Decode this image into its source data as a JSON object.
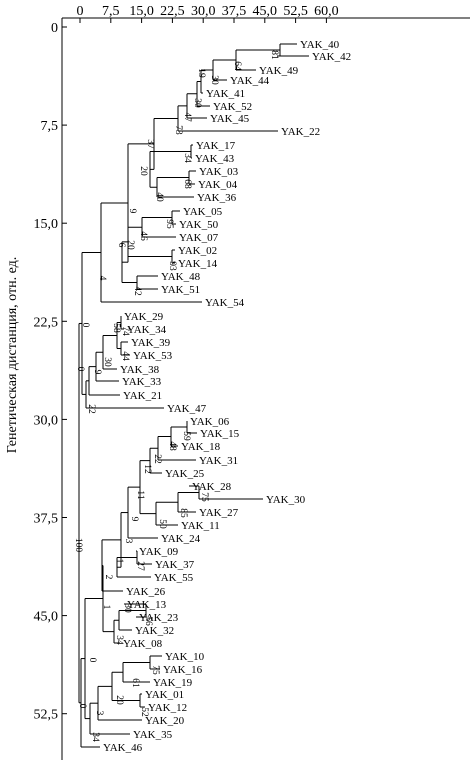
{
  "axis": {
    "title": "Генетическая дистанция, отн. ед.",
    "x_ticks": [
      "0",
      "7,5",
      "15,0",
      "22,5",
      "30,0",
      "37,5",
      "45,0",
      "52,5",
      "60,0"
    ],
    "y_ticks": [
      "0",
      "7,5",
      "15,0",
      "22,5",
      "30,0",
      "37,5",
      "45,0",
      "52,5"
    ]
  },
  "leaves": [
    "YAK_40",
    "YAK_42",
    "YAK_49",
    "YAK_44",
    "YAK_41",
    "YAK_52",
    "YAK_45",
    "YAK_22",
    "YAK_17",
    "YAK_43",
    "YAK_03",
    "YAK_04",
    "YAK_36",
    "YAK_05",
    "YAK_50",
    "YAK_07",
    "YAK_02",
    "YAK_14",
    "YAK_48",
    "YAK_51",
    "YAK_54",
    "YAK_29",
    "YAK_34",
    "YAK_39",
    "YAK_53",
    "YAK_38",
    "YAK_33",
    "YAK_21",
    "YAK_47",
    "YAK_06",
    "YAK_15",
    "YAK_18",
    "YAK_31",
    "YAK_25",
    "YAK_28",
    "YAK_30",
    "YAK_27",
    "YAK_11",
    "YAK_24",
    "YAK_09",
    "YAK_37",
    "YAK_55",
    "YAK_26",
    "YAK_13",
    "YAK_23",
    "YAK_32",
    "YAK_08",
    "YAK_10",
    "YAK_16",
    "YAK_19",
    "YAK_01",
    "YAK_12",
    "YAK_20",
    "YAK_35",
    "YAK_46"
  ],
  "support": {
    "n_40_42": "81",
    "n_40_49": "64",
    "n_40_44": "30",
    "n_40_41": "19",
    "n_40_52": "30",
    "n_40_45": "47",
    "n_40_22": "73",
    "n_17_43": "34",
    "n_03_04": "68",
    "n_03_36": "40",
    "n_17_03": "20",
    "n_40_17": "37",
    "n_05_50": "95",
    "n_05_07": "46",
    "n_02_14": "93",
    "n_05_02": "20",
    "n_48_51": "42",
    "n_05_48": "6",
    "n_top_mid": "9",
    "n_top_54": "4",
    "n_29_34": "74",
    "n_29_39": "58",
    "n_39_53": "44",
    "n_29_38": "30",
    "n_29_33": "9",
    "n_29_21": "0",
    "n_upper": "0",
    "n_upper_47": "22",
    "n_06_15": "59",
    "n_06_18": "48",
    "n_06_31": "22",
    "n_06_25": "12",
    "n_28_30": "75",
    "n_28_27": "85",
    "n_28_11": "50",
    "n_06_28": "11",
    "n_06_24": "9",
    "n_09_37": "27",
    "n_09_55": "1",
    "n_06_09": "3",
    "n_06_26": "2",
    "n_13_23": "56",
    "n_13_32": "30",
    "n_13_08": "34",
    "n_mid": "1",
    "n_10_16": "75",
    "n_10_19": "61",
    "n_01_12": "52",
    "n_10_01": "20",
    "n_10_20": "3",
    "n_10_35": "34",
    "n_lower": "0",
    "n_lower_46": "0",
    "n_root": "100"
  }
}
